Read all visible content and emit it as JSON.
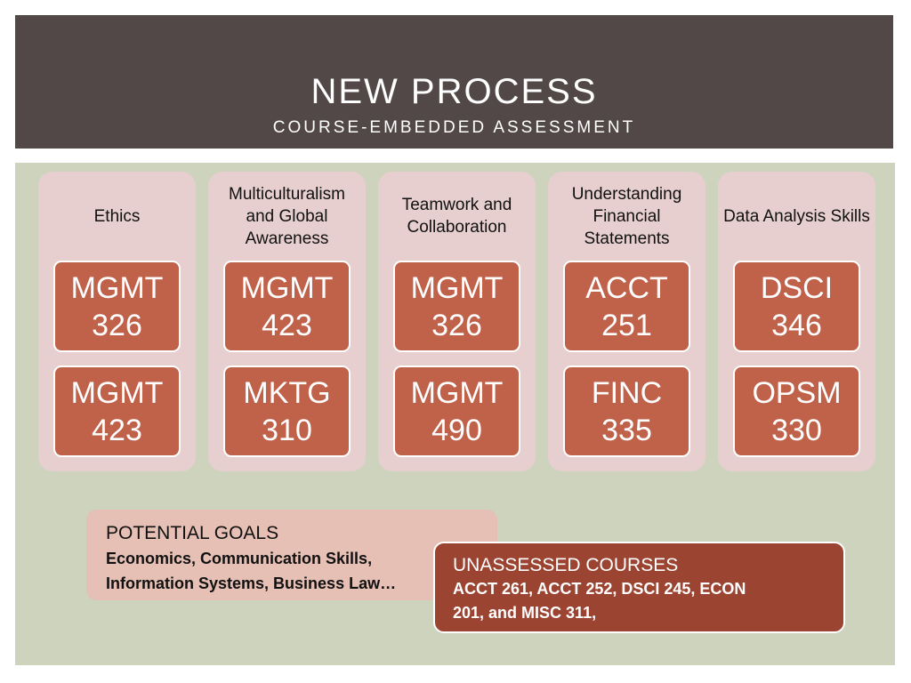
{
  "header": {
    "title": "NEW PROCESS",
    "subtitle": "COURSE-EMBEDDED ASSESSMENT"
  },
  "goals": [
    {
      "title": "Ethics",
      "courses": [
        [
          "MGMT",
          "326"
        ],
        [
          "MGMT",
          "423"
        ]
      ]
    },
    {
      "title": "Multiculturalism and Global Awareness",
      "courses": [
        [
          "MGMT",
          "423"
        ],
        [
          "MKTG",
          "310"
        ]
      ]
    },
    {
      "title": "Teamwork and Collaboration",
      "courses": [
        [
          "MGMT",
          "326"
        ],
        [
          "MGMT",
          "490"
        ]
      ]
    },
    {
      "title": "Understanding Financial Statements",
      "courses": [
        [
          "ACCT",
          "251"
        ],
        [
          "FINC",
          "335"
        ]
      ]
    },
    {
      "title": "Data Analysis Skills",
      "courses": [
        [
          "DSCI",
          "346"
        ],
        [
          "OPSM",
          "330"
        ]
      ]
    }
  ],
  "potential_goals": {
    "heading": "POTENTIAL GOALS",
    "text": "Economics, Communication Skills, Information Systems,  Business Law…"
  },
  "unassessed": {
    "heading": "UNASSESSED COURSES",
    "text": "ACCT 261, ACCT 252, DSCI 245, ECON 201, and MISC 311,"
  },
  "colors": {
    "header_bg": "#524848",
    "content_bg": "#cdd3bc",
    "column_bg": "#e6cfce",
    "course_box": "#c0614a",
    "potential_bg": "#e6bfb5",
    "unassessed_bg": "#9c4432"
  }
}
